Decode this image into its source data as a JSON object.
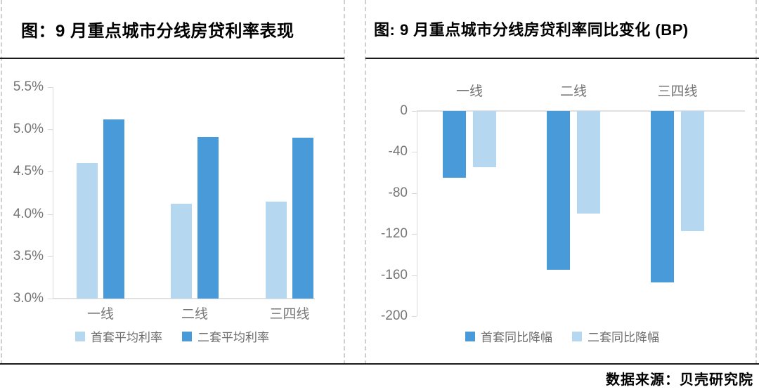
{
  "source": "数据来源：贝壳研究院",
  "colors": {
    "primary_dark": "#489AD8",
    "primary_light": "#B5D8F0",
    "axis_gray": "#D9D9D9",
    "label_gray": "#757575",
    "title_black": "#000000"
  },
  "chart_data": [
    {
      "type": "bar",
      "title": "图：9 月重点城市分线房贷利率表现",
      "categories": [
        "一线",
        "二线",
        "三四线"
      ],
      "series": [
        {
          "name": "首套平均利率",
          "color_key": "primary_light",
          "values": [
            4.6,
            4.12,
            4.15
          ]
        },
        {
          "name": "二套平均利率",
          "color_key": "primary_dark",
          "values": [
            5.12,
            4.91,
            4.9
          ]
        }
      ],
      "unit": "%",
      "ylim": [
        3.0,
        5.5
      ],
      "baseline_value": 3.0,
      "yticks": [
        {
          "label": "5.5%",
          "value": 5.5
        },
        {
          "label": "5.0%",
          "value": 5.0
        },
        {
          "label": "4.5%",
          "value": 4.5
        },
        {
          "label": "4.0%",
          "value": 4.0
        },
        {
          "label": "3.5%",
          "value": 3.5
        },
        {
          "label": "3.0%",
          "value": 3.0
        }
      ],
      "grid": false,
      "legend_position": "bottom"
    },
    {
      "type": "bar",
      "title": "图: 9 月重点城市分线房贷利率同比变化 (BP)",
      "categories": [
        "一线",
        "二线",
        "三四线"
      ],
      "series": [
        {
          "name": "首套同比降幅",
          "color_key": "primary_dark",
          "values": [
            -65,
            -155,
            -167
          ]
        },
        {
          "name": "二套同比降幅",
          "color_key": "primary_light",
          "values": [
            -55,
            -100,
            -117
          ]
        }
      ],
      "unit": "BP",
      "ylim": [
        -200,
        0
      ],
      "baseline_value": 0,
      "yticks": [
        {
          "label": "0",
          "value": 0
        },
        {
          "label": "-40",
          "value": -40
        },
        {
          "label": "-80",
          "value": -80
        },
        {
          "label": "-120",
          "value": -120
        },
        {
          "label": "-160",
          "value": -160
        },
        {
          "label": "-200",
          "value": -200
        }
      ],
      "grid": false,
      "legend_position": "bottom"
    }
  ]
}
